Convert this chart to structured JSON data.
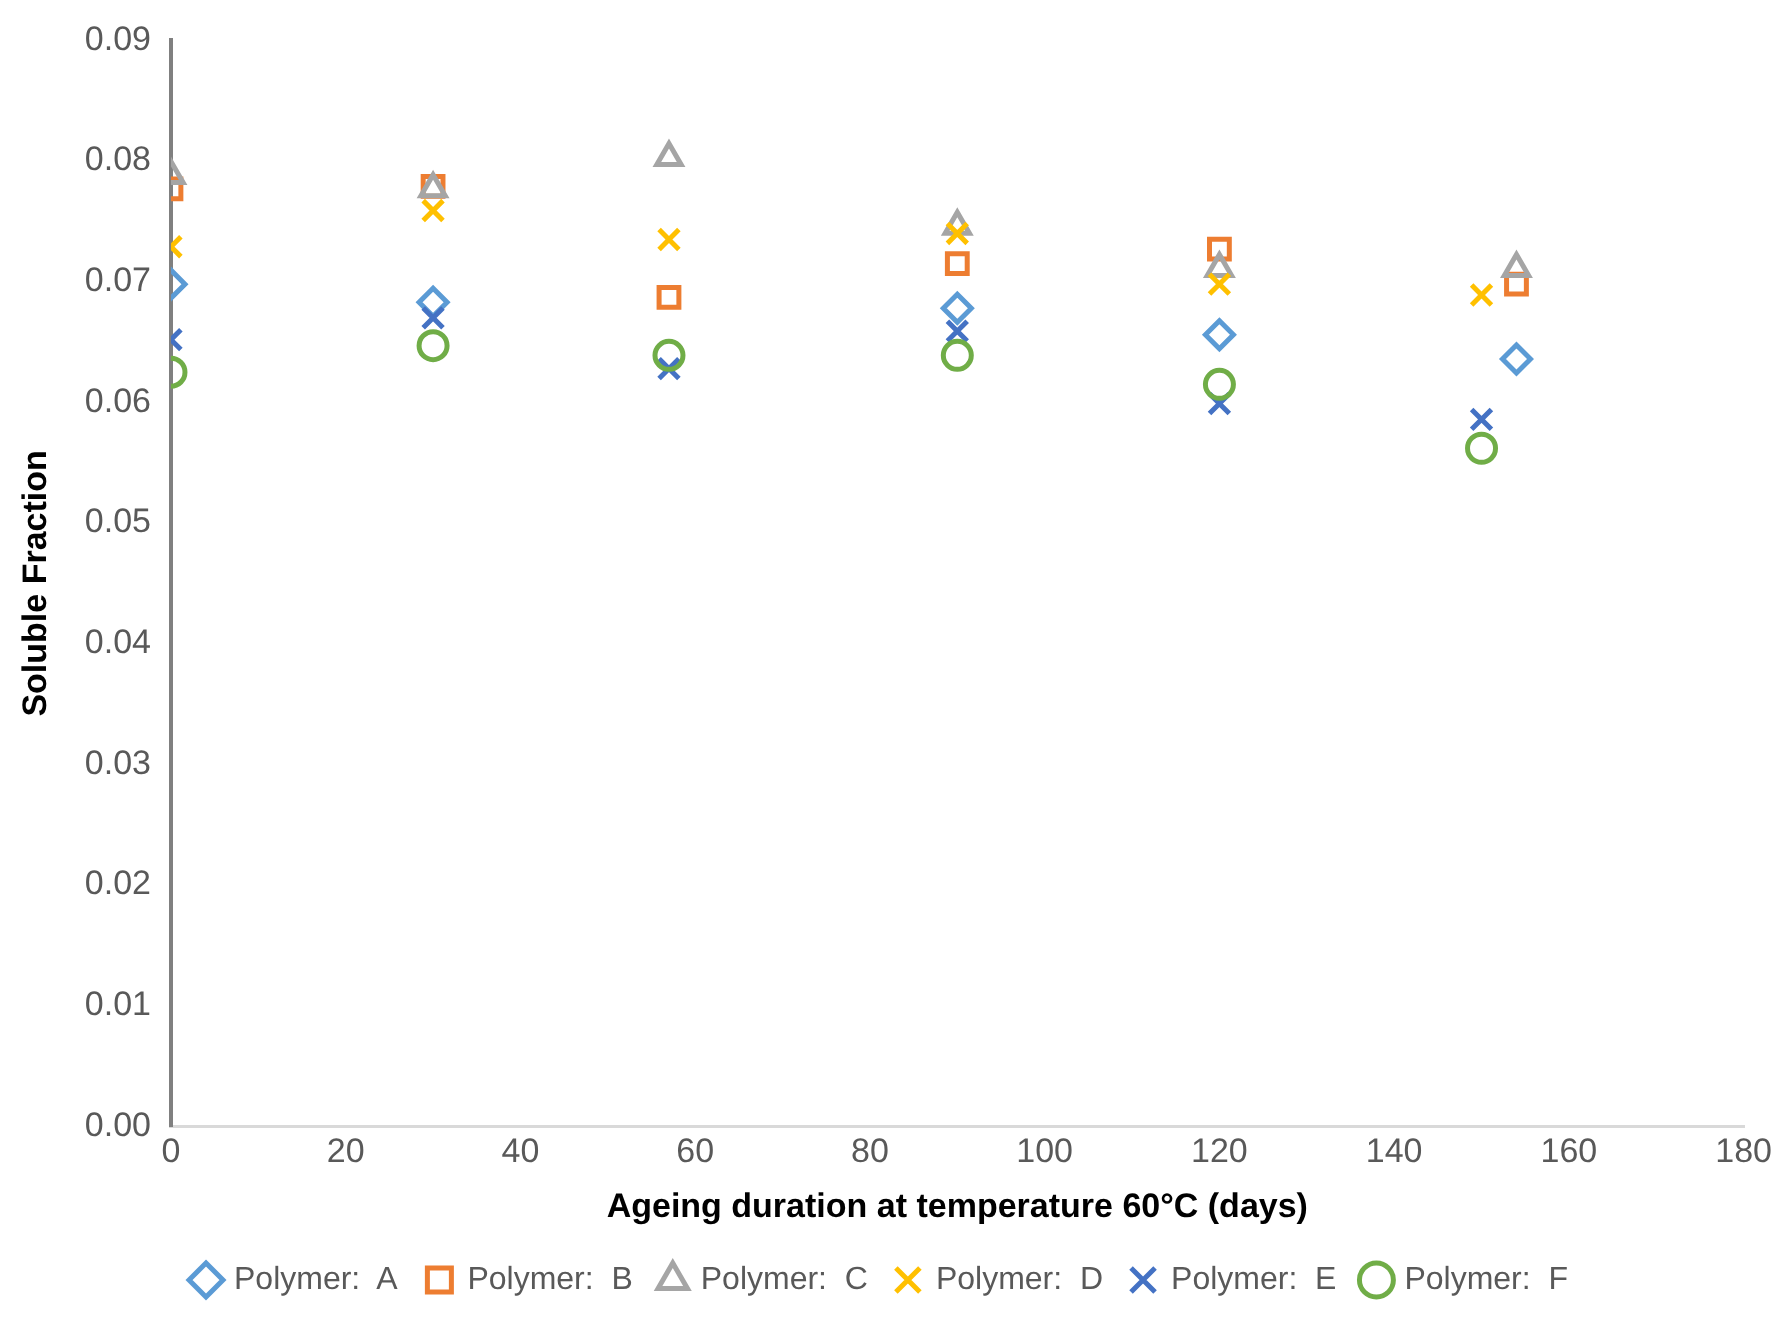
{
  "chart_data": {
    "type": "scatter",
    "xlabel": "Ageing duration at temperature 60°C (days)",
    "ylabel": "Soluble Fraction",
    "xlim": [
      0,
      180
    ],
    "xticks": [
      0,
      20,
      40,
      60,
      80,
      100,
      120,
      140,
      160,
      180
    ],
    "ylim": [
      0,
      0.09
    ],
    "yticks": [
      {
        "value": 0,
        "label": "0.00"
      },
      {
        "value": 0.01,
        "label": "0.01"
      },
      {
        "value": 0.02,
        "label": "0.02"
      },
      {
        "value": 0.03,
        "label": "0.03"
      },
      {
        "value": 0.04,
        "label": "0.04"
      },
      {
        "value": 0.05,
        "label": "0.05"
      },
      {
        "value": 0.06,
        "label": "0.06"
      },
      {
        "value": 0.07,
        "label": "0.07"
      },
      {
        "value": 0.08,
        "label": "0.08"
      },
      {
        "value": 0.09,
        "label": "0.09"
      }
    ],
    "grid": false,
    "legend": "bottom",
    "series": [
      {
        "name": "Polymer:  A",
        "color": "#5b9bd5",
        "marker": "diamond",
        "x": [
          0,
          30,
          90,
          120,
          154
        ],
        "values": [
          0.0698,
          0.0683,
          0.0678,
          0.0656,
          0.0636
        ]
      },
      {
        "name": "Polymer:  B",
        "color": "#ed7d31",
        "marker": "square",
        "x": [
          0,
          30,
          57,
          90,
          120,
          154
        ],
        "values": [
          0.0777,
          0.0779,
          0.0687,
          0.0715,
          0.0727,
          0.0698
        ]
      },
      {
        "name": "Polymer:  C",
        "color": "#a5a5a5",
        "marker": "triangle",
        "x": [
          0,
          30,
          57,
          90,
          120,
          154
        ],
        "values": [
          0.0788,
          0.0777,
          0.0803,
          0.0746,
          0.0711,
          0.0711
        ]
      },
      {
        "name": "Polymer:  D",
        "color": "#ffc000",
        "marker": "cross",
        "x": [
          0,
          30,
          57,
          90,
          120,
          150
        ],
        "values": [
          0.0729,
          0.0759,
          0.0735,
          0.074,
          0.0698,
          0.0689
        ]
      },
      {
        "name": "Polymer:  E",
        "color": "#4472c4",
        "marker": "cross",
        "x": [
          0,
          30,
          57,
          90,
          120,
          150
        ],
        "values": [
          0.0652,
          0.067,
          0.0628,
          0.0659,
          0.0599,
          0.0586
        ]
      },
      {
        "name": "Polymer:  F",
        "color": "#70ad47",
        "marker": "circle",
        "x": [
          0,
          30,
          57,
          90,
          120,
          150
        ],
        "values": [
          0.0625,
          0.0647,
          0.0639,
          0.0639,
          0.0615,
          0.0562
        ]
      }
    ]
  }
}
